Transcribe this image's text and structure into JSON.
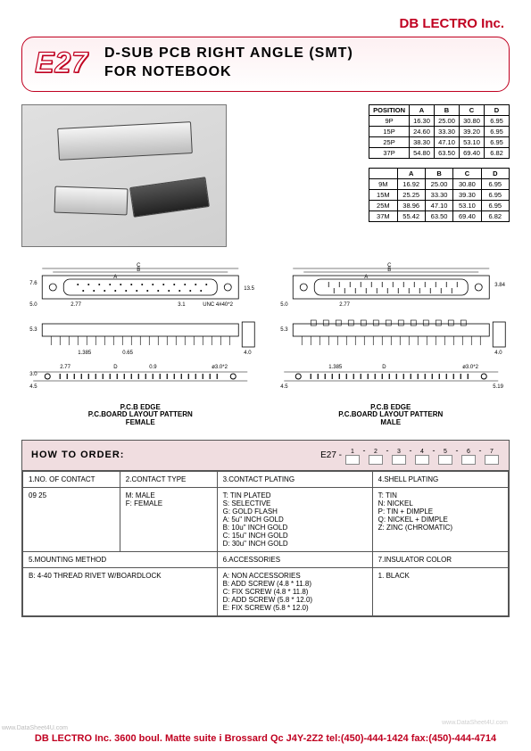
{
  "company": "DB LECTRO Inc.",
  "badge": "E27",
  "title_line1": "D-SUB PCB RIGHT ANGLE (SMT)",
  "title_line2": "FOR NOTEBOOK",
  "watermark": "www.DataSheet4U.com",
  "colors": {
    "brand": "#c00020",
    "header_bg": "#f0dde0",
    "border": "#555555",
    "bg": "#ffffff"
  },
  "table1": {
    "headers": [
      "POSITION",
      "A",
      "B",
      "C",
      "D"
    ],
    "rows": [
      [
        "9P",
        "16.30",
        "25.00",
        "30.80",
        "6.95"
      ],
      [
        "15P",
        "24.60",
        "33.30",
        "39.20",
        "6.95"
      ],
      [
        "25P",
        "38.30",
        "47.10",
        "53.10",
        "6.95"
      ],
      [
        "37P",
        "54.80",
        "63.50",
        "69.40",
        "6.82"
      ]
    ]
  },
  "table2": {
    "headers": [
      "",
      "A",
      "B",
      "C",
      "D"
    ],
    "rows": [
      [
        "9M",
        "16.92",
        "25.00",
        "30.80",
        "6.95"
      ],
      [
        "15M",
        "25.25",
        "33.30",
        "39.30",
        "6.95"
      ],
      [
        "25M",
        "38.96",
        "47.10",
        "53.10",
        "6.95"
      ],
      [
        "37M",
        "55.42",
        "63.50",
        "69.40",
        "6.82"
      ]
    ]
  },
  "drawings": {
    "female_label1": "P.C.B EDGE",
    "female_label2": "P.C.BOARD LAYOUT PATTERN",
    "female_label3": "FEMALE",
    "male_label1": "P.C.B EDGE",
    "male_label2": "P.C.BOARD LAYOUT PATTERN",
    "male_label3": "MALE",
    "dims": {
      "c": "C",
      "b": "B",
      "a": "A",
      "d277": "2.77",
      "d31": "3.1",
      "unc": "UNC 4#40*2",
      "d76": "7.6",
      "d135": "13.5",
      "d50": "5.0",
      "d53": "5.3",
      "d40": "4.0",
      "d1385": "1.385",
      "d065": "0.65",
      "d09": "0.9",
      "d30p2": "ø3.0*2",
      "d30": "3.0",
      "d45": "4.5",
      "d519": "5.19",
      "d384": "3.84"
    }
  },
  "order": {
    "title": "HOW TO ORDER:",
    "code_prefix": "E27 -",
    "slot_nums": [
      "1",
      "2",
      "3",
      "4",
      "5",
      "6",
      "7"
    ],
    "row1": {
      "h1": "1.NO. OF CONTACT",
      "h2": "2.CONTACT TYPE",
      "h3": "3.CONTACT PLATING",
      "h4": "4.SHELL PLATING"
    },
    "row1v": {
      "v1": "09  25",
      "v2": "M: MALE\nF: FEMALE",
      "v3": "T: TIN PLATED\nS: SELECTIVE\nG: GOLD FLASH\nA: 5u\" INCH GOLD\nB: 10u\" INCH GOLD\nC: 15u\" INCH GOLD\nD: 30u\" INCH GOLD",
      "v4": "T: TIN\nN: NICKEL\nP: TIN + DIMPLE\nQ: NICKEL + DIMPLE\nZ: ZINC (CHROMATIC)"
    },
    "row2": {
      "h5": "5.MOUNTING METHOD",
      "h6": "6.ACCESSORIES",
      "h7": "7.INSULATOR COLOR"
    },
    "row2v": {
      "v5": "B: 4-40 THREAD RIVET W/BOARDLOCK",
      "v6": "A: NON ACCESSORIES\nB: ADD SCREW (4.8 * 11.8)\nC: FIX SCREW (4.8 * 11.8)\nD: ADD SCREW (5.8 * 12.0)\nE: FIX SCREW (5.8 * 12.0)",
      "v7": "1. BLACK"
    }
  },
  "footer": "DB LECTRO Inc. 3600 boul. Matte suite i Brossard Qc J4Y-2Z2 tel:(450)-444-1424 fax:(450)-444-4714"
}
